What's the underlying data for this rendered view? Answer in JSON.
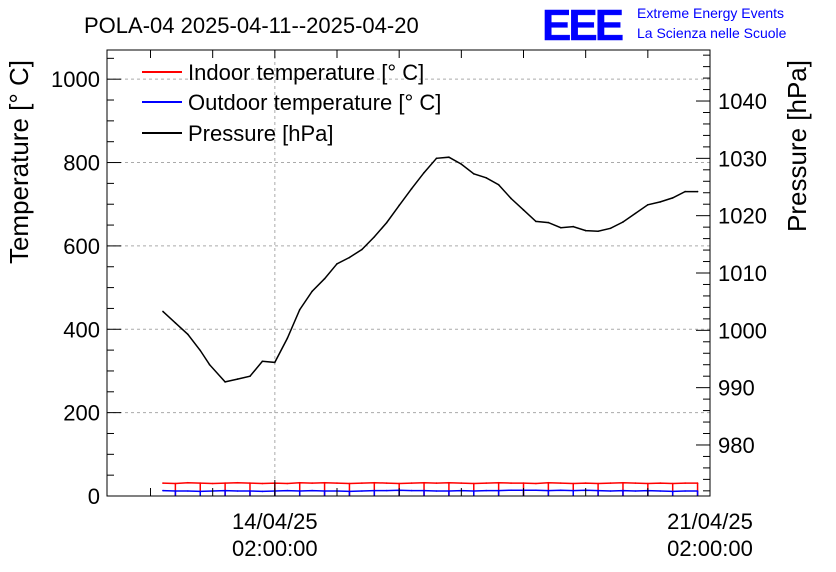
{
  "chart_data": {
    "type": "line",
    "title": "POLA-04 2025-04-11--2025-04-20",
    "ylabel": "Temperature [° C]",
    "y2label": "Pressure [hPa]",
    "ylim": [
      0,
      1070
    ],
    "y2lim": [
      971.1,
      1048.9
    ],
    "yticks": [
      "0",
      "200",
      "400",
      "600",
      "800",
      "1000"
    ],
    "y2ticks": [
      "980",
      "990",
      "1000",
      "1010",
      "1020",
      "1030",
      "1040"
    ],
    "xticks": [
      {
        "date": "14/04/25",
        "time": "02:00:00",
        "day": 3.0
      },
      {
        "date": "21/04/25",
        "time": "02:00:00",
        "day": 10.0
      }
    ],
    "xrange_days": [
      0.3,
      10.0
    ],
    "grid": true,
    "legend_position": "top-left",
    "colors": {
      "indoor": "#ff0000",
      "outdoor": "#0000ff",
      "pressure": "#000000"
    },
    "series": [
      {
        "name": "Indoor temperature [° C]",
        "axis": "left",
        "color": "#ff0000",
        "x": [
          1.2,
          1.4,
          1.6,
          1.8,
          2.0,
          2.2,
          2.4,
          2.6,
          2.8,
          3.0,
          3.2,
          3.4,
          3.6,
          3.8,
          4.0,
          4.2,
          4.4,
          4.6,
          4.8,
          5.0,
          5.2,
          5.4,
          5.6,
          5.8,
          6.0,
          6.2,
          6.4,
          6.6,
          6.8,
          7.0,
          7.2,
          7.4,
          7.6,
          7.8,
          8.0,
          8.2,
          8.4,
          8.6,
          8.8,
          9.0,
          9.2,
          9.4,
          9.6,
          9.8
        ],
        "values": [
          31,
          30,
          32,
          31,
          30,
          31,
          32,
          31,
          30,
          31,
          30,
          32,
          31,
          32,
          31,
          30,
          31,
          32,
          31,
          30,
          31,
          32,
          31,
          32,
          31,
          30,
          31,
          32,
          31,
          31,
          30,
          32,
          31,
          30,
          31,
          30,
          31,
          32,
          31,
          30,
          31,
          30,
          31,
          31
        ]
      },
      {
        "name": "Outdoor temperature [° C]",
        "axis": "left",
        "color": "#0000ff",
        "x": [
          1.2,
          1.4,
          1.6,
          1.8,
          2.0,
          2.2,
          2.4,
          2.6,
          2.8,
          3.0,
          3.2,
          3.4,
          3.6,
          3.8,
          4.0,
          4.2,
          4.4,
          4.6,
          4.8,
          5.0,
          5.2,
          5.4,
          5.6,
          5.8,
          6.0,
          6.2,
          6.4,
          6.6,
          6.8,
          7.0,
          7.2,
          7.4,
          7.6,
          7.8,
          8.0,
          8.2,
          8.4,
          8.6,
          8.8,
          9.0,
          9.2,
          9.4,
          9.6,
          9.8
        ],
        "values": [
          13,
          12,
          12,
          11,
          12,
          13,
          12,
          12,
          11,
          12,
          13,
          12,
          13,
          12,
          12,
          11,
          12,
          13,
          13,
          14,
          13,
          13,
          12,
          12,
          13,
          12,
          13,
          13,
          14,
          14,
          14,
          13,
          14,
          13,
          14,
          13,
          12,
          13,
          12,
          13,
          12,
          11,
          12,
          12
        ]
      },
      {
        "name": "Pressure [hPa]",
        "axis": "right",
        "color": "#000000",
        "x": [
          1.2,
          1.4,
          1.6,
          1.8,
          1.95,
          2.2,
          2.4,
          2.6,
          2.8,
          3.0,
          3.2,
          3.4,
          3.6,
          3.8,
          4.0,
          4.2,
          4.4,
          4.6,
          4.8,
          5.0,
          5.2,
          5.4,
          5.6,
          5.8,
          6.0,
          6.2,
          6.4,
          6.6,
          6.8,
          7.0,
          7.2,
          7.4,
          7.6,
          7.8,
          8.0,
          8.2,
          8.4,
          8.6,
          8.8,
          9.0,
          9.2,
          9.4,
          9.6,
          9.8
        ],
        "values": [
          1003.3,
          1001.3,
          999.3,
          996.5,
          994.0,
          991.0,
          991.5,
          992.0,
          994.6,
          994.4,
          998.6,
          1003.6,
          1006.8,
          1009.0,
          1011.6,
          1012.7,
          1014.1,
          1016.3,
          1018.8,
          1021.8,
          1024.7,
          1027.5,
          1030.0,
          1030.2,
          1029.0,
          1027.3,
          1026.6,
          1025.4,
          1023.0,
          1021.0,
          1019.0,
          1018.8,
          1017.9,
          1018.1,
          1017.4,
          1017.3,
          1017.8,
          1018.9,
          1020.4,
          1021.9,
          1022.4,
          1023.1,
          1024.2,
          1024.2
        ]
      }
    ]
  },
  "logo": {
    "text": "EEE",
    "line1": "Extreme Energy Events",
    "line2": "La Scienza nelle Scuole",
    "color": "#0000ff"
  }
}
